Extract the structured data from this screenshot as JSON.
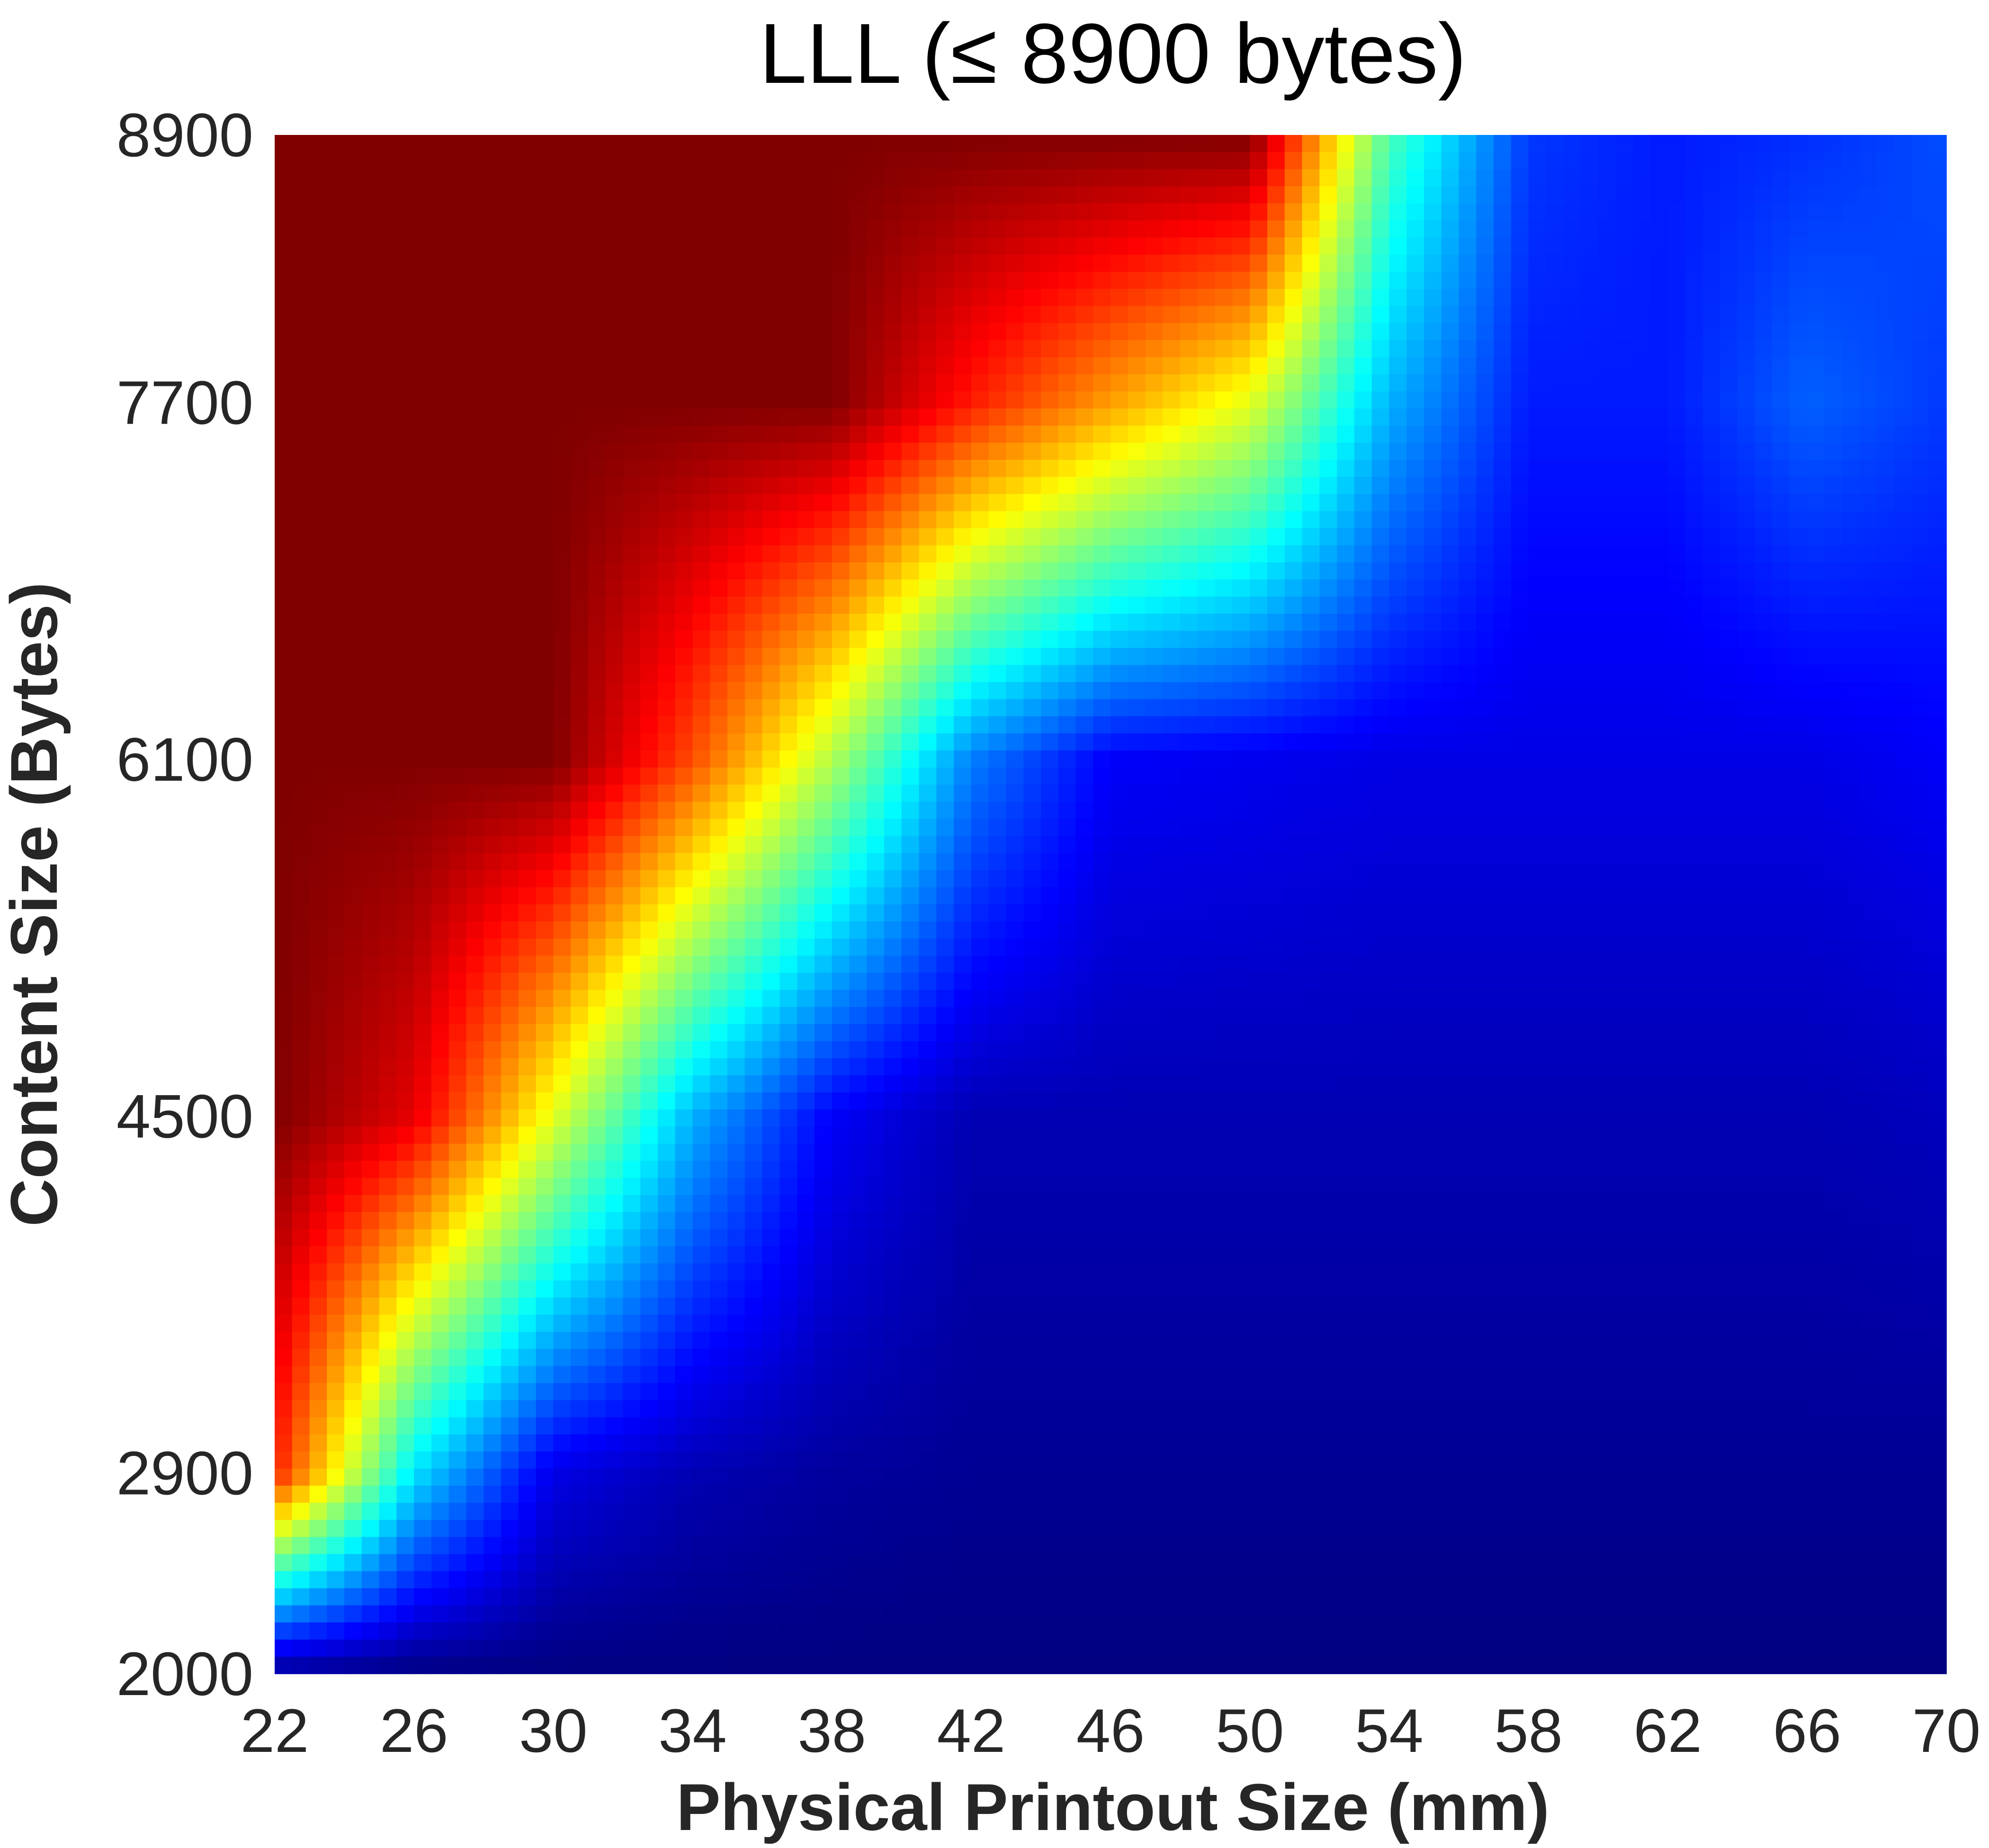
{
  "chart_data": {
    "type": "heatmap",
    "title": "LLL (≤ 8900 bytes)",
    "xlabel": "Physical Printout Size (mm)",
    "ylabel": "Content Size (Bytes)",
    "x_tick_labels": [
      "22",
      "26",
      "30",
      "34",
      "38",
      "42",
      "46",
      "50",
      "54",
      "58",
      "62",
      "66",
      "70"
    ],
    "y_tick_labels": [
      "2000",
      "2900",
      "4500",
      "6100",
      "7700",
      "8900"
    ],
    "xlim": [
      22,
      70
    ],
    "ylim": [
      2000,
      8900
    ],
    "colormap": "jet",
    "grid": false,
    "x": [
      22,
      26,
      30,
      34,
      38,
      42,
      46,
      50,
      54,
      58,
      62,
      66,
      70
    ],
    "y": [
      2000,
      2900,
      4500,
      6100,
      7700,
      8900
    ],
    "rows": [
      {
        "y": 2000,
        "values": [
          0.02,
          0.0,
          0.0,
          0.0,
          0.0,
          0.0,
          0.0,
          0.0,
          0.0,
          0.0,
          0.0,
          0.0,
          0.0
        ]
      },
      {
        "y": 2900,
        "values": [
          0.85,
          0.35,
          0.1,
          0.05,
          0.03,
          0.02,
          0.02,
          0.02,
          0.02,
          0.02,
          0.02,
          0.02,
          0.02
        ]
      },
      {
        "y": 4500,
        "values": [
          1.0,
          0.9,
          0.6,
          0.3,
          0.12,
          0.05,
          0.05,
          0.05,
          0.05,
          0.05,
          0.05,
          0.05,
          0.06
        ]
      },
      {
        "y": 6100,
        "values": [
          1.0,
          1.0,
          1.0,
          0.8,
          0.55,
          0.25,
          0.12,
          0.11,
          0.1,
          0.1,
          0.1,
          0.1,
          0.12
        ]
      },
      {
        "y": 7700,
        "values": [
          1.0,
          1.0,
          1.0,
          1.0,
          1.0,
          0.85,
          0.72,
          0.6,
          0.3,
          0.15,
          0.15,
          0.22,
          0.18
        ]
      },
      {
        "y": 8900,
        "values": [
          1.0,
          1.0,
          1.0,
          1.0,
          1.0,
          1.0,
          1.0,
          1.0,
          0.45,
          0.18,
          0.15,
          0.17,
          0.2
        ]
      }
    ]
  }
}
